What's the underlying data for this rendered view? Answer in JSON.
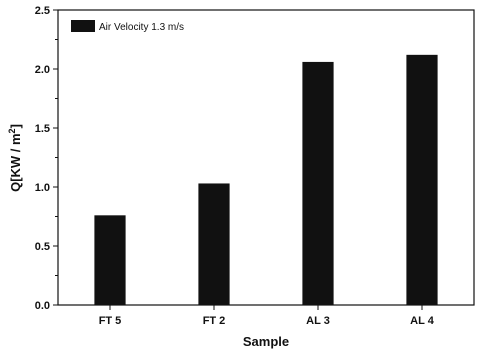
{
  "chart_data": {
    "type": "bar",
    "categories": [
      "FT 5",
      "FT 2",
      "AL 3",
      "AL 4"
    ],
    "series": [
      {
        "name": "Air Velocity 1.3 m/s",
        "values": [
          0.76,
          1.03,
          2.06,
          2.12
        ]
      }
    ],
    "xlabel": "Sample",
    "ylabel": {
      "base": "Q[KW / m",
      "sup": "2",
      "end": "]"
    },
    "ylim": [
      0.0,
      2.5
    ],
    "yticks": [
      "0.0",
      "0.5",
      "1.0",
      "1.5",
      "2.0",
      "2.5"
    ],
    "legend_position": "top-left",
    "grid": false,
    "bar_color": "#111111"
  }
}
